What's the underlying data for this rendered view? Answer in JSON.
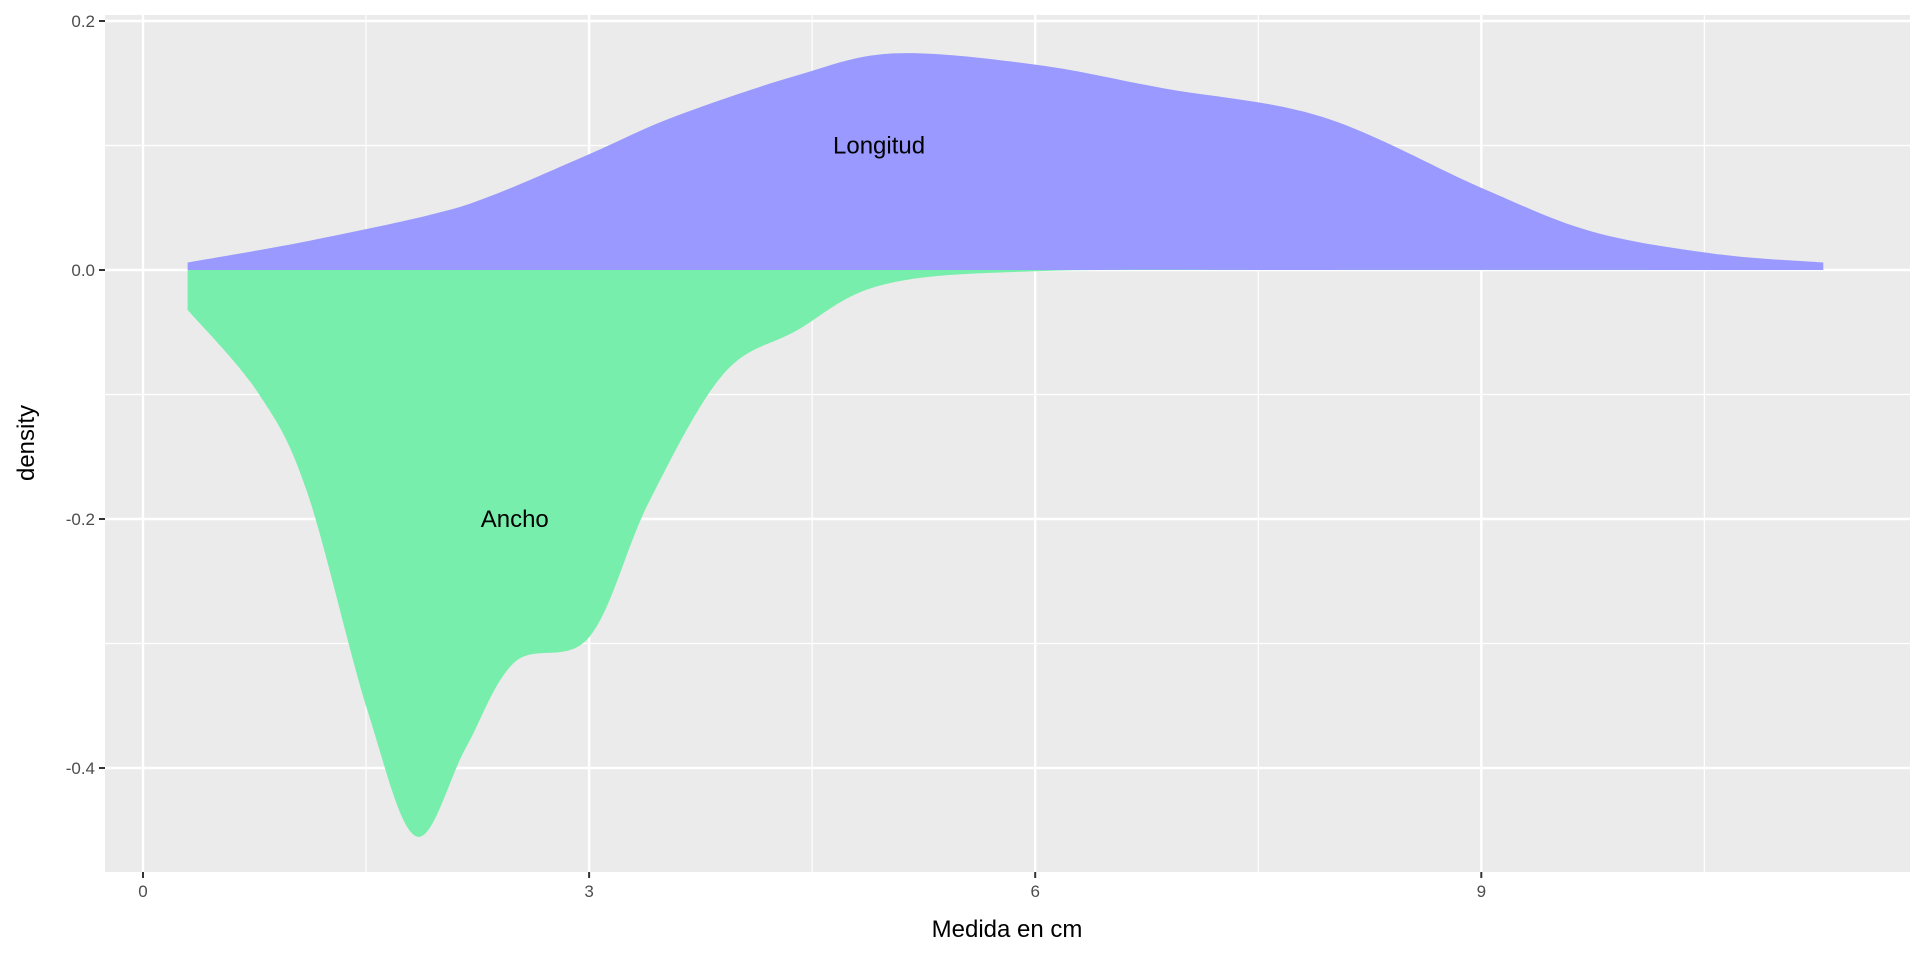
{
  "chart_data": {
    "type": "area",
    "title": "",
    "xlabel": "Medida en cm",
    "ylabel": "density",
    "xlim": [
      -0.25,
      11.8
    ],
    "ylim": [
      -0.48,
      0.205
    ],
    "x_ticks": [
      0,
      3,
      6,
      9
    ],
    "x_tick_labels": [
      "0",
      "3",
      "6",
      "9"
    ],
    "y_ticks": [
      0.2,
      0.0,
      -0.2,
      -0.4
    ],
    "y_tick_labels": [
      "0.2",
      "0.0",
      "-0.2",
      "-0.4"
    ],
    "grid": true,
    "legend": "none",
    "series": [
      {
        "name": "Longitud",
        "color": "#9999FF",
        "label_position": [
          4.95,
          0.1
        ],
        "x": [
          0.3,
          1.1,
          1.92,
          2.33,
          3.0,
          3.57,
          4.39,
          5.05,
          6.0,
          6.86,
          7.93,
          9.0,
          9.74,
          10.57,
          11.3
        ],
        "y": [
          0.006,
          0.023,
          0.044,
          0.059,
          0.093,
          0.123,
          0.156,
          0.174,
          0.165,
          0.146,
          0.123,
          0.066,
          0.031,
          0.013,
          0.006
        ]
      },
      {
        "name": "Ancho",
        "color": "#78EEAC",
        "label_position": [
          2.5,
          -0.2
        ],
        "x": [
          0.3,
          0.77,
          1.1,
          1.51,
          1.84,
          2.17,
          2.5,
          3.0,
          3.4,
          3.9,
          4.39,
          4.97,
          6.0,
          8.0,
          11.3
        ],
        "y": [
          -0.032,
          -0.098,
          -0.177,
          -0.354,
          -0.455,
          -0.384,
          -0.315,
          -0.295,
          -0.187,
          -0.084,
          -0.049,
          -0.012,
          -0.001,
          0.0,
          0.0
        ]
      }
    ]
  }
}
